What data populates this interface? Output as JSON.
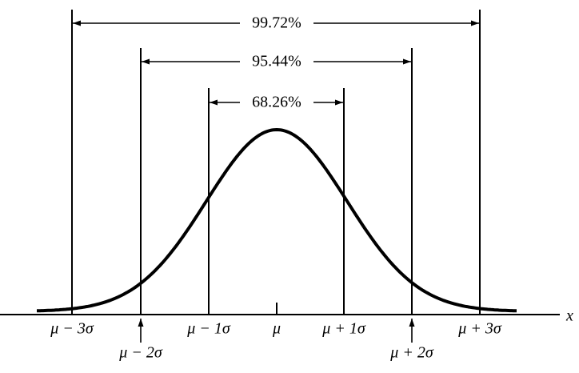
{
  "brackets": [
    {
      "label": "99.72%"
    },
    {
      "label": "95.44%"
    },
    {
      "label": "68.26%"
    }
  ],
  "axis": {
    "label": "x"
  },
  "ticks": [
    {
      "label": "μ − 3σ"
    },
    {
      "label": "μ − 2σ"
    },
    {
      "label": "μ − 1σ"
    },
    {
      "label": "μ"
    },
    {
      "label": "μ + 1σ"
    },
    {
      "label": "μ + 2σ"
    },
    {
      "label": "μ + 3σ"
    }
  ]
}
